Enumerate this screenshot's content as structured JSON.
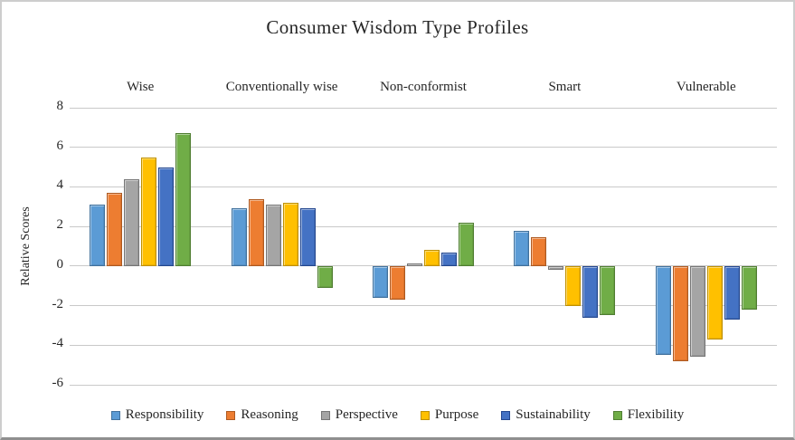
{
  "chart_data": {
    "type": "bar",
    "title": "Consumer Wisdom Type Profiles",
    "ylabel": "Relative Scores",
    "xlabel": "",
    "categories": [
      "Wise",
      "Conventionally wise",
      "Non-conformist",
      "Smart",
      "Vulnerable"
    ],
    "series": [
      {
        "name": "Responsibility",
        "color": "#5B9BD5",
        "border_color": "#41719C",
        "values": [
          3.1,
          2.9,
          -1.6,
          1.8,
          -4.5
        ]
      },
      {
        "name": "Reasoning",
        "color": "#ED7D31",
        "border_color": "#AE5A21",
        "values": [
          3.7,
          3.4,
          -1.7,
          1.45,
          -4.8
        ]
      },
      {
        "name": "Perspective",
        "color": "#A5A5A5",
        "border_color": "#767676",
        "values": [
          4.4,
          3.1,
          0.15,
          -0.2,
          -4.6
        ]
      },
      {
        "name": "Purpose",
        "color": "#FFC000",
        "border_color": "#BF9000",
        "values": [
          5.5,
          3.2,
          0.8,
          -2.0,
          -3.7
        ]
      },
      {
        "name": "Sustainability",
        "color": "#4472C4",
        "border_color": "#24478F",
        "values": [
          5.0,
          2.9,
          0.7,
          -2.6,
          -2.7
        ]
      },
      {
        "name": "Flexibility",
        "color": "#70AD47",
        "border_color": "#507E32",
        "values": [
          6.7,
          -1.1,
          2.2,
          -2.5,
          -2.2
        ]
      }
    ],
    "ylim": [
      -6,
      8
    ],
    "yticks": [
      8,
      6,
      4,
      2,
      0,
      -2,
      -4,
      -6
    ],
    "grid": true,
    "gridline_color": "#c9c9c9",
    "legend_position": "bottom"
  }
}
